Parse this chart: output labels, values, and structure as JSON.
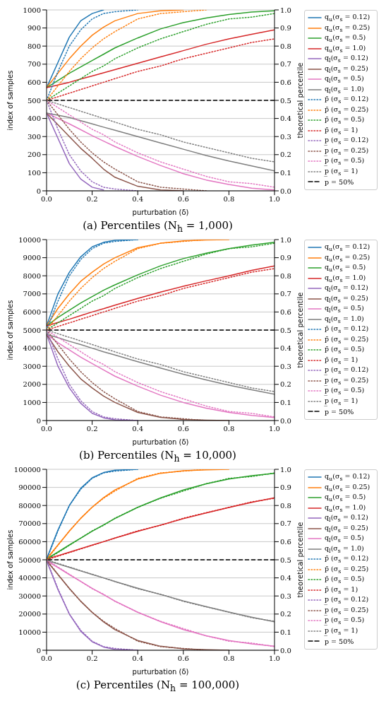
{
  "chart_data": [
    {
      "type": "line",
      "title": "(a) Percentiles (N$_{h}$ = 1,000)",
      "xlabel": "purturbation (δ)",
      "ylabel": "index of samples",
      "y2label": "theoretical percentile",
      "line_style": "solid",
      "grid": "y",
      "legend": "top right",
      "x": [
        0,
        0.05,
        0.1,
        0.15,
        0.2,
        0.25,
        0.3,
        0.4,
        0.5,
        0.6,
        0.7,
        0.8,
        0.9,
        1.0
      ],
      "xlim": [
        0,
        1
      ],
      "xticks": [
        {
          "value": 0,
          "label": "0.0"
        },
        {
          "value": 0.2,
          "label": "0.2"
        },
        {
          "value": 0.4,
          "label": "0.4"
        },
        {
          "value": 0.6,
          "label": "0.6"
        },
        {
          "value": 0.8,
          "label": "0.8"
        },
        {
          "value": 1,
          "label": "1.0"
        }
      ],
      "ylim": [
        0,
        1000
      ],
      "yticks": [
        0,
        100,
        200,
        300,
        400,
        500,
        600,
        700,
        800,
        900,
        1000
      ],
      "y2lim": [
        0,
        1
      ],
      "y2ticks": [
        {
          "value": 0,
          "label": "0.0"
        },
        {
          "value": 0.1,
          "label": "0.1"
        },
        {
          "value": 0.2,
          "label": "0.2"
        },
        {
          "value": 0.3,
          "label": "0.3"
        },
        {
          "value": 0.4,
          "label": "0.4"
        },
        {
          "value": 0.5,
          "label": "0.5"
        },
        {
          "value": 0.6,
          "label": "0.6"
        },
        {
          "value": 0.7,
          "label": "0.7"
        },
        {
          "value": 0.8,
          "label": "0.8"
        },
        {
          "value": 0.9,
          "label": "0.9"
        },
        {
          "value": 1,
          "label": "1.0"
        }
      ],
      "series": [
        {
          "name": "q$_{u}$(σ$_{s}$ = 0.12)",
          "color": "#1f77b4",
          "values": [
            570,
            710,
            850,
            940,
            980,
            1000,
            null,
            null,
            null,
            null,
            null,
            null,
            null,
            null
          ]
        },
        {
          "name": "q$_{u}$(σ$_{s}$ = 0.25)",
          "color": "#ff7f0e",
          "values": [
            570,
            650,
            730,
            800,
            860,
            905,
            940,
            980,
            995,
            1000,
            null,
            null,
            null,
            null
          ]
        },
        {
          "name": "q$_{u}$(σ$_{s}$ = 0.5)",
          "color": "#2ca02c",
          "values": [
            570,
            610,
            650,
            685,
            720,
            755,
            790,
            845,
            895,
            930,
            955,
            975,
            988,
            995
          ]
        },
        {
          "name": "q$_{u}$(σ$_{s}$ = 1.0)",
          "color": "#d62728",
          "values": [
            570,
            585,
            600,
            618,
            635,
            652,
            670,
            705,
            740,
            775,
            810,
            840,
            865,
            890
          ]
        },
        {
          "name": "q$_{l}$(σ$_{s}$ = 0.12)",
          "color": "#9467bd",
          "values": [
            430,
            290,
            150,
            65,
            20,
            5,
            null,
            null,
            null,
            null,
            null,
            null,
            null,
            null
          ]
        },
        {
          "name": "q$_{l}$(σ$_{s}$ = 0.25)",
          "color": "#8c564b",
          "values": [
            430,
            365,
            300,
            235,
            180,
            120,
            75,
            25,
            5,
            0,
            null,
            null,
            null,
            null
          ]
        },
        {
          "name": "q$_{l}$(σ$_{s}$ = 0.5)",
          "color": "#e377c2",
          "values": [
            430,
            400,
            370,
            338,
            305,
            275,
            245,
            190,
            140,
            95,
            60,
            35,
            15,
            5
          ]
        },
        {
          "name": "q$_{l}$(σ$_{s}$ = 1.0)",
          "color": "#7f7f7f",
          "values": [
            430,
            418,
            405,
            388,
            370,
            352,
            335,
            300,
            265,
            230,
            195,
            165,
            138,
            110
          ]
        },
        {
          "name": "p̄ (σ$_{s}$ = 0.12)",
          "color": "#1f77b4",
          "axis": "y2",
          "line_style": "dotted",
          "values": [
            0.5,
            0.66,
            0.8,
            0.89,
            0.95,
            0.98,
            0.99,
            1,
            null,
            null,
            null,
            null,
            null,
            null
          ]
        },
        {
          "name": "p̄ (σ$_{s}$ = 0.25)",
          "color": "#ff7f0e",
          "axis": "y2",
          "line_style": "dotted",
          "values": [
            0.5,
            0.58,
            0.66,
            0.73,
            0.79,
            0.84,
            0.88,
            0.95,
            0.98,
            0.99,
            1,
            null,
            null,
            null
          ]
        },
        {
          "name": "p̄ (σ$_{s}$ = 0.5)",
          "color": "#2ca02c",
          "axis": "y2",
          "line_style": "dotted",
          "values": [
            0.5,
            0.54,
            0.58,
            0.62,
            0.66,
            0.69,
            0.73,
            0.79,
            0.84,
            0.88,
            0.92,
            0.95,
            0.96,
            0.98
          ]
        },
        {
          "name": "p̄ (σ$_{s}$ = 1)",
          "color": "#d62728",
          "axis": "y2",
          "line_style": "dotted",
          "values": [
            0.5,
            0.52,
            0.54,
            0.56,
            0.58,
            0.6,
            0.62,
            0.66,
            0.69,
            0.73,
            0.76,
            0.79,
            0.82,
            0.84
          ]
        },
        {
          "name": "p̲ (σ$_{s}$ = 0.12)",
          "color": "#9467bd",
          "axis": "y2",
          "line_style": "dotted",
          "values": [
            0.5,
            0.34,
            0.2,
            0.11,
            0.05,
            0.02,
            0.01,
            0,
            null,
            null,
            null,
            null,
            null,
            null
          ]
        },
        {
          "name": "p̲ (σ$_{s}$ = 0.25)",
          "color": "#8c564b",
          "axis": "y2",
          "line_style": "dotted",
          "values": [
            0.5,
            0.42,
            0.34,
            0.27,
            0.21,
            0.16,
            0.12,
            0.05,
            0.02,
            0.01,
            0,
            null,
            null,
            null
          ]
        },
        {
          "name": "p̲ (σ$_{s}$ = 0.5)",
          "color": "#e377c2",
          "axis": "y2",
          "line_style": "dotted",
          "values": [
            0.5,
            0.46,
            0.42,
            0.38,
            0.34,
            0.31,
            0.27,
            0.21,
            0.16,
            0.12,
            0.08,
            0.05,
            0.04,
            0.02
          ]
        },
        {
          "name": "p̲ (σ$_{s}$ = 1)",
          "color": "#7f7f7f",
          "axis": "y2",
          "line_style": "dotted",
          "values": [
            0.5,
            0.48,
            0.46,
            0.44,
            0.42,
            0.4,
            0.38,
            0.34,
            0.31,
            0.27,
            0.24,
            0.21,
            0.18,
            0.16
          ]
        }
      ],
      "ref_lines": [
        {
          "axis": "y2",
          "value": 0.5,
          "label": "p = 50%",
          "color": "#000000",
          "line_style": "dashed"
        }
      ]
    },
    {
      "type": "line",
      "title": "(b) Percentiles (N$_{h}$ = 10,000)",
      "xlabel": "purturbation (δ)",
      "ylabel": "index of samples",
      "y2label": "theoretical percentile",
      "line_style": "solid",
      "grid": "y",
      "legend": "top right",
      "x": [
        0,
        0.05,
        0.1,
        0.15,
        0.2,
        0.25,
        0.3,
        0.4,
        0.5,
        0.6,
        0.7,
        0.8,
        0.9,
        1.0
      ],
      "xlim": [
        0,
        1
      ],
      "xticks": [
        {
          "value": 0,
          "label": "0.0"
        },
        {
          "value": 0.2,
          "label": "0.2"
        },
        {
          "value": 0.4,
          "label": "0.4"
        },
        {
          "value": 0.6,
          "label": "0.6"
        },
        {
          "value": 0.8,
          "label": "0.8"
        },
        {
          "value": 1,
          "label": "1.0"
        }
      ],
      "ylim": [
        0,
        10000
      ],
      "yticks": [
        0,
        1000,
        2000,
        3000,
        4000,
        5000,
        6000,
        7000,
        8000,
        9000,
        10000
      ],
      "y2lim": [
        0,
        1
      ],
      "y2ticks": [
        {
          "value": 0,
          "label": "0.0"
        },
        {
          "value": 0.1,
          "label": "0.1"
        },
        {
          "value": 0.2,
          "label": "0.2"
        },
        {
          "value": 0.3,
          "label": "0.3"
        },
        {
          "value": 0.4,
          "label": "0.4"
        },
        {
          "value": 0.5,
          "label": "0.5"
        },
        {
          "value": 0.6,
          "label": "0.6"
        },
        {
          "value": 0.7,
          "label": "0.7"
        },
        {
          "value": 0.8,
          "label": "0.8"
        },
        {
          "value": 0.9,
          "label": "0.9"
        },
        {
          "value": 1,
          "label": "1.0"
        }
      ],
      "series": [
        {
          "name": "q$_{u}$(σ$_{s}$ = 0.12)",
          "color": "#1f77b4",
          "values": [
            5230,
            7000,
            8200,
            9050,
            9600,
            9850,
            9960,
            10000,
            null,
            null,
            null,
            null,
            null,
            null
          ]
        },
        {
          "name": "q$_{u}$(σ$_{s}$ = 0.25)",
          "color": "#ff7f0e",
          "values": [
            5230,
            6200,
            7000,
            7700,
            8200,
            8650,
            9000,
            9550,
            9800,
            9930,
            9980,
            10000,
            null,
            null
          ]
        },
        {
          "name": "q$_{u}$(σ$_{s}$ = 0.5)",
          "color": "#2ca02c",
          "values": [
            5230,
            5700,
            6100,
            6500,
            6850,
            7200,
            7500,
            8050,
            8550,
            8950,
            9250,
            9500,
            9700,
            9850
          ]
        },
        {
          "name": "q$_{u}$(σ$_{s}$ = 1.0)",
          "color": "#d62728",
          "values": [
            5230,
            5420,
            5600,
            5800,
            6000,
            6180,
            6380,
            6750,
            7100,
            7420,
            7720,
            8000,
            8300,
            8550
          ]
        },
        {
          "name": "q$_{l}$(σ$_{s}$ = 0.12)",
          "color": "#9467bd",
          "values": [
            4770,
            3000,
            1800,
            950,
            400,
            150,
            40,
            0,
            null,
            null,
            null,
            null,
            null,
            null
          ]
        },
        {
          "name": "q$_{l}$(σ$_{s}$ = 0.25)",
          "color": "#8c564b",
          "values": [
            4770,
            3800,
            3000,
            2300,
            1800,
            1350,
            1000,
            450,
            180,
            60,
            20,
            0,
            null,
            null
          ]
        },
        {
          "name": "q$_{l}$(σ$_{s}$ = 0.5)",
          "color": "#e377c2",
          "values": [
            4770,
            4300,
            3900,
            3500,
            3150,
            2800,
            2450,
            1900,
            1400,
            1000,
            680,
            450,
            280,
            170
          ]
        },
        {
          "name": "q$_{l}$(σ$_{s}$ = 1.0)",
          "color": "#7f7f7f",
          "values": [
            4770,
            4580,
            4380,
            4200,
            4000,
            3800,
            3620,
            3250,
            2900,
            2560,
            2250,
            1950,
            1700,
            1450
          ]
        },
        {
          "name": "p̄ (σ$_{s}$ = 0.12)",
          "color": "#1f77b4",
          "axis": "y2",
          "line_style": "dotted",
          "values": [
            0.5,
            0.66,
            0.8,
            0.89,
            0.95,
            0.98,
            0.99,
            1,
            null,
            null,
            null,
            null,
            null,
            null
          ]
        },
        {
          "name": "p̄ (σ$_{s}$ = 0.25)",
          "color": "#ff7f0e",
          "axis": "y2",
          "line_style": "dotted",
          "values": [
            0.5,
            0.58,
            0.66,
            0.73,
            0.79,
            0.84,
            0.88,
            0.95,
            0.98,
            0.99,
            1,
            null,
            null,
            null
          ]
        },
        {
          "name": "p̄ (σ$_{s}$ = 0.5)",
          "color": "#2ca02c",
          "axis": "y2",
          "line_style": "dotted",
          "values": [
            0.5,
            0.54,
            0.58,
            0.62,
            0.66,
            0.69,
            0.73,
            0.79,
            0.84,
            0.88,
            0.92,
            0.95,
            0.96,
            0.98
          ]
        },
        {
          "name": "p̄ (σ$_{s}$ = 1)",
          "color": "#d62728",
          "axis": "y2",
          "line_style": "dotted",
          "values": [
            0.5,
            0.52,
            0.54,
            0.56,
            0.58,
            0.6,
            0.62,
            0.66,
            0.69,
            0.73,
            0.76,
            0.79,
            0.82,
            0.84
          ]
        },
        {
          "name": "p̲ (σ$_{s}$ = 0.12)",
          "color": "#9467bd",
          "axis": "y2",
          "line_style": "dotted",
          "values": [
            0.5,
            0.34,
            0.2,
            0.11,
            0.05,
            0.02,
            0.01,
            0,
            null,
            null,
            null,
            null,
            null,
            null
          ]
        },
        {
          "name": "p̲ (σ$_{s}$ = 0.25)",
          "color": "#8c564b",
          "axis": "y2",
          "line_style": "dotted",
          "values": [
            0.5,
            0.42,
            0.34,
            0.27,
            0.21,
            0.16,
            0.12,
            0.05,
            0.02,
            0.01,
            0,
            null,
            null,
            null
          ]
        },
        {
          "name": "p̲ (σ$_{s}$ = 0.5)",
          "color": "#e377c2",
          "axis": "y2",
          "line_style": "dotted",
          "values": [
            0.5,
            0.46,
            0.42,
            0.38,
            0.34,
            0.31,
            0.27,
            0.21,
            0.16,
            0.12,
            0.08,
            0.05,
            0.04,
            0.02
          ]
        },
        {
          "name": "p̲ (σ$_{s}$ = 1)",
          "color": "#7f7f7f",
          "axis": "y2",
          "line_style": "dotted",
          "values": [
            0.5,
            0.48,
            0.46,
            0.44,
            0.42,
            0.4,
            0.38,
            0.34,
            0.31,
            0.27,
            0.24,
            0.21,
            0.18,
            0.16
          ]
        }
      ],
      "ref_lines": [
        {
          "axis": "y2",
          "value": 0.5,
          "label": "p = 50%",
          "color": "#000000",
          "line_style": "dashed"
        }
      ]
    },
    {
      "type": "line",
      "title": "(c) Percentiles (N$_{h}$ = 100,000)",
      "xlabel": "purturbation (δ)",
      "ylabel": "index of samples",
      "y2label": "theoretical percentile",
      "line_style": "solid",
      "grid": "y",
      "legend": "top right",
      "x": [
        0,
        0.05,
        0.1,
        0.15,
        0.2,
        0.25,
        0.3,
        0.4,
        0.5,
        0.6,
        0.7,
        0.8,
        0.9,
        1.0
      ],
      "xlim": [
        0,
        1
      ],
      "xticks": [
        {
          "value": 0,
          "label": "0.0"
        },
        {
          "value": 0.2,
          "label": "0.2"
        },
        {
          "value": 0.4,
          "label": "0.4"
        },
        {
          "value": 0.6,
          "label": "0.6"
        },
        {
          "value": 0.8,
          "label": "0.8"
        },
        {
          "value": 1,
          "label": "1.0"
        }
      ],
      "ylim": [
        0,
        100000
      ],
      "yticks": [
        0,
        10000,
        20000,
        30000,
        40000,
        50000,
        60000,
        70000,
        80000,
        90000,
        100000
      ],
      "y2lim": [
        0,
        1
      ],
      "y2ticks": [
        {
          "value": 0,
          "label": "0.0"
        },
        {
          "value": 0.1,
          "label": "0.1"
        },
        {
          "value": 0.2,
          "label": "0.2"
        },
        {
          "value": 0.3,
          "label": "0.3"
        },
        {
          "value": 0.4,
          "label": "0.4"
        },
        {
          "value": 0.5,
          "label": "0.5"
        },
        {
          "value": 0.6,
          "label": "0.6"
        },
        {
          "value": 0.7,
          "label": "0.7"
        },
        {
          "value": 0.8,
          "label": "0.8"
        },
        {
          "value": 0.9,
          "label": "0.9"
        },
        {
          "value": 1,
          "label": "1.0"
        }
      ],
      "series": [
        {
          "name": "q$_{u}$(σ$_{s}$ = 0.12)",
          "color": "#1f77b4",
          "values": [
            50500,
            66500,
            80000,
            89500,
            95300,
            98200,
            99500,
            100000,
            null,
            null,
            null,
            null,
            null,
            null
          ]
        },
        {
          "name": "q$_{u}$(σ$_{s}$ = 0.25)",
          "color": "#ff7f0e",
          "values": [
            50500,
            58200,
            65800,
            72900,
            79100,
            84300,
            88600,
            94600,
            97800,
            99200,
            99700,
            100000,
            null,
            null
          ]
        },
        {
          "name": "q$_{u}$(σ$_{s}$ = 0.5)",
          "color": "#2ca02c",
          "values": [
            50500,
            54300,
            58200,
            62000,
            65800,
            69300,
            72800,
            79000,
            84200,
            88600,
            92000,
            94600,
            96500,
            97800
          ]
        },
        {
          "name": "q$_{u}$(σ$_{s}$ = 1.0)",
          "color": "#d62728",
          "values": [
            50500,
            52300,
            54200,
            56200,
            58100,
            60000,
            62000,
            65700,
            69200,
            72700,
            75900,
            78900,
            81700,
            84300
          ]
        },
        {
          "name": "q$_{l}$(σ$_{s}$ = 0.12)",
          "color": "#9467bd",
          "values": [
            49500,
            33500,
            20000,
            10500,
            4700,
            1800,
            500,
            0,
            null,
            null,
            null,
            null,
            null,
            null
          ]
        },
        {
          "name": "q$_{l}$(σ$_{s}$ = 0.25)",
          "color": "#8c564b",
          "values": [
            49500,
            41800,
            34200,
            27100,
            20900,
            15700,
            11400,
            5400,
            2200,
            800,
            300,
            0,
            null,
            null
          ]
        },
        {
          "name": "q$_{l}$(σ$_{s}$ = 0.5)",
          "color": "#e377c2",
          "values": [
            49500,
            45700,
            41800,
            38000,
            34200,
            30700,
            27200,
            21000,
            15800,
            11400,
            8000,
            5400,
            3500,
            2200
          ]
        },
        {
          "name": "q$_{l}$(σ$_{s}$ = 1.0)",
          "color": "#7f7f7f",
          "values": [
            49500,
            47700,
            45800,
            43800,
            41900,
            40000,
            38000,
            34300,
            30800,
            27300,
            24100,
            21100,
            18300,
            15700
          ]
        },
        {
          "name": "p̄ (σ$_{s}$ = 0.12)",
          "color": "#1f77b4",
          "axis": "y2",
          "line_style": "dotted",
          "values": [
            0.5,
            0.66,
            0.8,
            0.89,
            0.95,
            0.98,
            0.99,
            1,
            null,
            null,
            null,
            null,
            null,
            null
          ]
        },
        {
          "name": "p̄ (σ$_{s}$ = 0.25)",
          "color": "#ff7f0e",
          "axis": "y2",
          "line_style": "dotted",
          "values": [
            0.5,
            0.58,
            0.66,
            0.73,
            0.79,
            0.84,
            0.88,
            0.95,
            0.98,
            0.99,
            1,
            null,
            null,
            null
          ]
        },
        {
          "name": "p̄ (σ$_{s}$ = 0.5)",
          "color": "#2ca02c",
          "axis": "y2",
          "line_style": "dotted",
          "values": [
            0.5,
            0.54,
            0.58,
            0.62,
            0.66,
            0.69,
            0.73,
            0.79,
            0.84,
            0.88,
            0.92,
            0.95,
            0.96,
            0.98
          ]
        },
        {
          "name": "p̄ (σ$_{s}$ = 1)",
          "color": "#d62728",
          "axis": "y2",
          "line_style": "dotted",
          "values": [
            0.5,
            0.52,
            0.54,
            0.56,
            0.58,
            0.6,
            0.62,
            0.66,
            0.69,
            0.73,
            0.76,
            0.79,
            0.82,
            0.84
          ]
        },
        {
          "name": "p̲ (σ$_{s}$ = 0.12)",
          "color": "#9467bd",
          "axis": "y2",
          "line_style": "dotted",
          "values": [
            0.5,
            0.34,
            0.2,
            0.11,
            0.05,
            0.02,
            0.01,
            0,
            null,
            null,
            null,
            null,
            null,
            null
          ]
        },
        {
          "name": "p̲ (σ$_{s}$ = 0.25)",
          "color": "#8c564b",
          "axis": "y2",
          "line_style": "dotted",
          "values": [
            0.5,
            0.42,
            0.34,
            0.27,
            0.21,
            0.16,
            0.12,
            0.05,
            0.02,
            0.01,
            0,
            null,
            null,
            null
          ]
        },
        {
          "name": "p̲ (σ$_{s}$ = 0.5)",
          "color": "#e377c2",
          "axis": "y2",
          "line_style": "dotted",
          "values": [
            0.5,
            0.46,
            0.42,
            0.38,
            0.34,
            0.31,
            0.27,
            0.21,
            0.16,
            0.12,
            0.08,
            0.05,
            0.04,
            0.02
          ]
        },
        {
          "name": "p̲ (σ$_{s}$ = 1)",
          "color": "#7f7f7f",
          "axis": "y2",
          "line_style": "dotted",
          "values": [
            0.5,
            0.48,
            0.46,
            0.44,
            0.42,
            0.4,
            0.38,
            0.34,
            0.31,
            0.27,
            0.24,
            0.21,
            0.18,
            0.16
          ]
        }
      ],
      "ref_lines": [
        {
          "axis": "y2",
          "value": 0.5,
          "label": "p = 50%",
          "color": "#000000",
          "line_style": "dashed"
        }
      ]
    }
  ]
}
